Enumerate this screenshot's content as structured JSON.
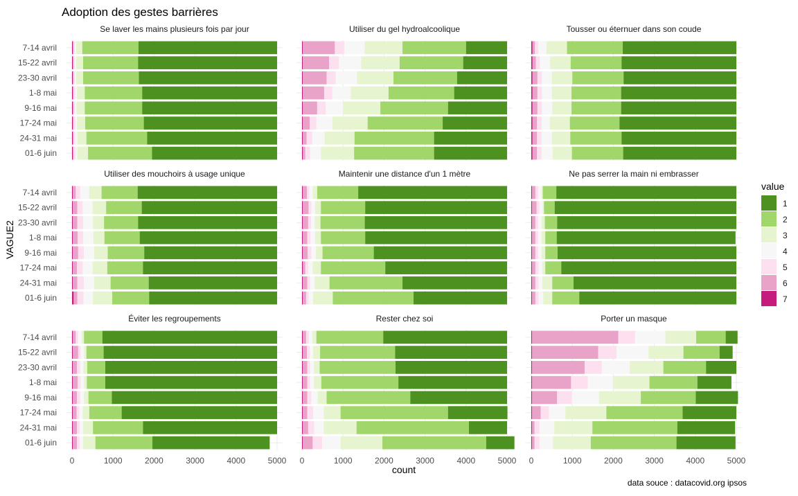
{
  "chart_data": {
    "type": "bar",
    "orientation": "horizontal-stacked",
    "title": "Adoption des gestes barrières",
    "xlabel": "count",
    "ylabel": "VAGUE2",
    "caption": "data souce : datacovid.org ipsos",
    "xlim": [
      0,
      5000
    ],
    "x_ticks": [
      0,
      1000,
      2000,
      3000,
      4000,
      5000
    ],
    "categories": [
      "7-14 avril",
      "15-22 avril",
      "23-30 avril",
      "1-8 mai",
      "9-16 mai",
      "17-24 mai",
      "24-31 mai",
      "01-6 juin"
    ],
    "legend": {
      "title": "value",
      "position": "right",
      "items": [
        {
          "label": "1",
          "color": "#4d9221"
        },
        {
          "label": "2",
          "color": "#a1d76a"
        },
        {
          "label": "3",
          "color": "#e6f5d0"
        },
        {
          "label": "4",
          "color": "#f7f7f7"
        },
        {
          "label": "5",
          "color": "#fde0ef"
        },
        {
          "label": "6",
          "color": "#e9a3c9"
        },
        {
          "label": "7",
          "color": "#c51b7d"
        }
      ]
    },
    "stack_order_left_to_right": [
      "7",
      "6",
      "5",
      "4",
      "3",
      "2",
      "1"
    ],
    "panels": [
      {
        "title": "Se laver les mains plusieurs fois par jour",
        "rows": [
          [
            20,
            20,
            30,
            30,
            150,
            1370,
            3380
          ],
          [
            20,
            20,
            30,
            30,
            170,
            1340,
            3390
          ],
          [
            20,
            20,
            30,
            30,
            170,
            1360,
            3370
          ],
          [
            20,
            20,
            40,
            40,
            190,
            1400,
            3290
          ],
          [
            20,
            20,
            30,
            40,
            200,
            1400,
            3290
          ],
          [
            20,
            20,
            40,
            40,
            200,
            1430,
            3250
          ],
          [
            20,
            20,
            40,
            50,
            220,
            1480,
            3170
          ],
          [
            20,
            20,
            40,
            50,
            260,
            1560,
            3050
          ]
        ]
      },
      {
        "title": "Utiliser du gel hydroalcoolique",
        "rows": [
          [
            20,
            780,
            230,
            500,
            920,
            1550,
            1000
          ],
          [
            20,
            640,
            240,
            540,
            940,
            1550,
            1070
          ],
          [
            20,
            580,
            220,
            520,
            890,
            1550,
            1220
          ],
          [
            20,
            520,
            200,
            450,
            920,
            1600,
            1290
          ],
          [
            20,
            350,
            210,
            420,
            910,
            1650,
            1440
          ],
          [
            20,
            170,
            160,
            390,
            860,
            1830,
            1570
          ],
          [
            20,
            90,
            140,
            300,
            730,
            1940,
            1780
          ],
          [
            20,
            60,
            120,
            260,
            810,
            1950,
            1780
          ]
        ]
      },
      {
        "title": "Tousser ou éternuer dans son coude",
        "rows": [
          [
            30,
            60,
            80,
            200,
            500,
            1360,
            2770
          ],
          [
            30,
            80,
            100,
            250,
            500,
            1240,
            2800
          ],
          [
            30,
            120,
            110,
            240,
            500,
            1250,
            2750
          ],
          [
            30,
            120,
            110,
            240,
            480,
            1210,
            2810
          ],
          [
            30,
            120,
            110,
            250,
            470,
            1210,
            2810
          ],
          [
            30,
            110,
            110,
            200,
            490,
            1210,
            2850
          ],
          [
            30,
            110,
            110,
            250,
            450,
            1250,
            2800
          ],
          [
            30,
            110,
            110,
            270,
            470,
            1250,
            2760
          ]
        ]
      },
      {
        "title": "Utiliser des mouchoirs à usage unique",
        "rows": [
          [
            20,
            70,
            110,
            220,
            300,
            880,
            3400
          ],
          [
            20,
            110,
            130,
            240,
            330,
            870,
            3300
          ],
          [
            20,
            110,
            140,
            240,
            270,
            830,
            3390
          ],
          [
            20,
            120,
            130,
            250,
            270,
            860,
            3350
          ],
          [
            20,
            130,
            140,
            250,
            330,
            890,
            3240
          ],
          [
            20,
            100,
            140,
            240,
            360,
            870,
            3270
          ],
          [
            20,
            110,
            160,
            250,
            400,
            930,
            3130
          ],
          [
            40,
            90,
            150,
            230,
            470,
            900,
            3120
          ]
        ]
      },
      {
        "title": "Maintenir une distance d'un 1 mètre",
        "rows": [
          [
            20,
            100,
            60,
            80,
            110,
            1000,
            3630
          ],
          [
            20,
            140,
            70,
            90,
            140,
            1080,
            3460
          ],
          [
            20,
            130,
            70,
            90,
            140,
            1080,
            3470
          ],
          [
            20,
            110,
            80,
            110,
            140,
            1080,
            3460
          ],
          [
            20,
            120,
            90,
            110,
            160,
            1250,
            3250
          ],
          [
            20,
            60,
            70,
            110,
            200,
            1570,
            2970
          ],
          [
            20,
            110,
            70,
            110,
            360,
            1780,
            2550
          ],
          [
            20,
            80,
            60,
            110,
            480,
            1970,
            2280
          ]
        ]
      },
      {
        "title": "Ne pas serrer la main ni embrasser",
        "rows": [
          [
            20,
            80,
            70,
            80,
            30,
            330,
            4390
          ],
          [
            20,
            110,
            70,
            80,
            30,
            260,
            4430
          ],
          [
            20,
            80,
            70,
            80,
            80,
            300,
            4370
          ],
          [
            20,
            80,
            70,
            80,
            90,
            280,
            4360
          ],
          [
            20,
            80,
            70,
            80,
            90,
            300,
            4360
          ],
          [
            20,
            80,
            80,
            90,
            70,
            390,
            4270
          ],
          [
            20,
            80,
            80,
            90,
            240,
            520,
            3970
          ],
          [
            20,
            80,
            80,
            110,
            220,
            660,
            3830
          ]
        ]
      },
      {
        "title": "Éviter les regroupements",
        "rows": [
          [
            20,
            70,
            60,
            80,
            60,
            450,
            4260
          ],
          [
            20,
            130,
            60,
            80,
            60,
            420,
            4230
          ],
          [
            20,
            100,
            80,
            80,
            90,
            440,
            4190
          ],
          [
            20,
            120,
            70,
            80,
            70,
            450,
            4190
          ],
          [
            20,
            100,
            80,
            90,
            110,
            570,
            4030
          ],
          [
            20,
            90,
            70,
            80,
            160,
            790,
            3790
          ],
          [
            20,
            100,
            70,
            80,
            240,
            1220,
            3270
          ],
          [
            20,
            100,
            70,
            80,
            300,
            1390,
            2860
          ]
        ]
      },
      {
        "title": "Rester chez soi",
        "rows": [
          [
            20,
            80,
            70,
            80,
            100,
            1630,
            3020
          ],
          [
            20,
            100,
            70,
            80,
            170,
            1830,
            2730
          ],
          [
            20,
            110,
            70,
            90,
            140,
            1850,
            2720
          ],
          [
            20,
            110,
            70,
            90,
            180,
            1880,
            2650
          ],
          [
            20,
            110,
            100,
            150,
            220,
            2040,
            2360
          ],
          [
            20,
            110,
            140,
            260,
            410,
            2620,
            1450
          ],
          [
            20,
            130,
            150,
            230,
            800,
            2740,
            930
          ],
          [
            20,
            240,
            230,
            450,
            1020,
            2530,
            690
          ]
        ]
      },
      {
        "title": "Porter un masque",
        "rows": [
          [
            20,
            2100,
            410,
            740,
            750,
            720,
            290
          ],
          [
            20,
            1610,
            450,
            780,
            850,
            880,
            320
          ],
          [
            20,
            1280,
            420,
            680,
            820,
            1040,
            740
          ],
          [
            20,
            950,
            410,
            610,
            890,
            1170,
            830
          ],
          [
            20,
            610,
            360,
            660,
            1020,
            1340,
            1030
          ],
          [
            20,
            210,
            200,
            400,
            1000,
            1860,
            1310
          ],
          [
            20,
            60,
            120,
            360,
            930,
            2070,
            1410
          ],
          [
            20,
            60,
            120,
            330,
            920,
            2090,
            1440
          ]
        ]
      }
    ]
  }
}
